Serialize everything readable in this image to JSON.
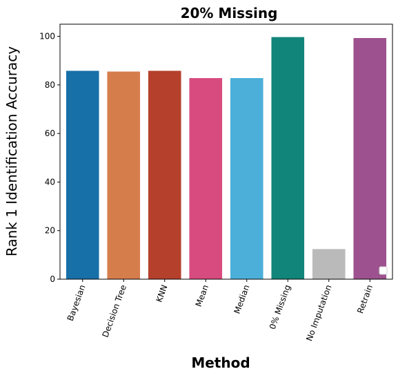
{
  "chart_data": {
    "type": "bar",
    "title": "20% Missing",
    "xlabel": "Method",
    "ylabel": "Rank 1 Identification Accuracy",
    "categories": [
      "Bayesian",
      "Decision Tree",
      "KNN",
      "Mean",
      "Median",
      "0% Missing",
      "No Imputation",
      "Retrain"
    ],
    "values": [
      85.8,
      85.5,
      85.8,
      82.8,
      82.8,
      99.7,
      12.4,
      99.3
    ],
    "colors": [
      "#1770a8",
      "#d67d4c",
      "#b5402b",
      "#d84b7e",
      "#4bafd9",
      "#12857a",
      "#bababa",
      "#9d528f"
    ],
    "ylim": [
      0,
      105
    ],
    "yticks": [
      0,
      20,
      40,
      60,
      80,
      100
    ],
    "grid": false,
    "legend": "bottom-right, empty"
  }
}
